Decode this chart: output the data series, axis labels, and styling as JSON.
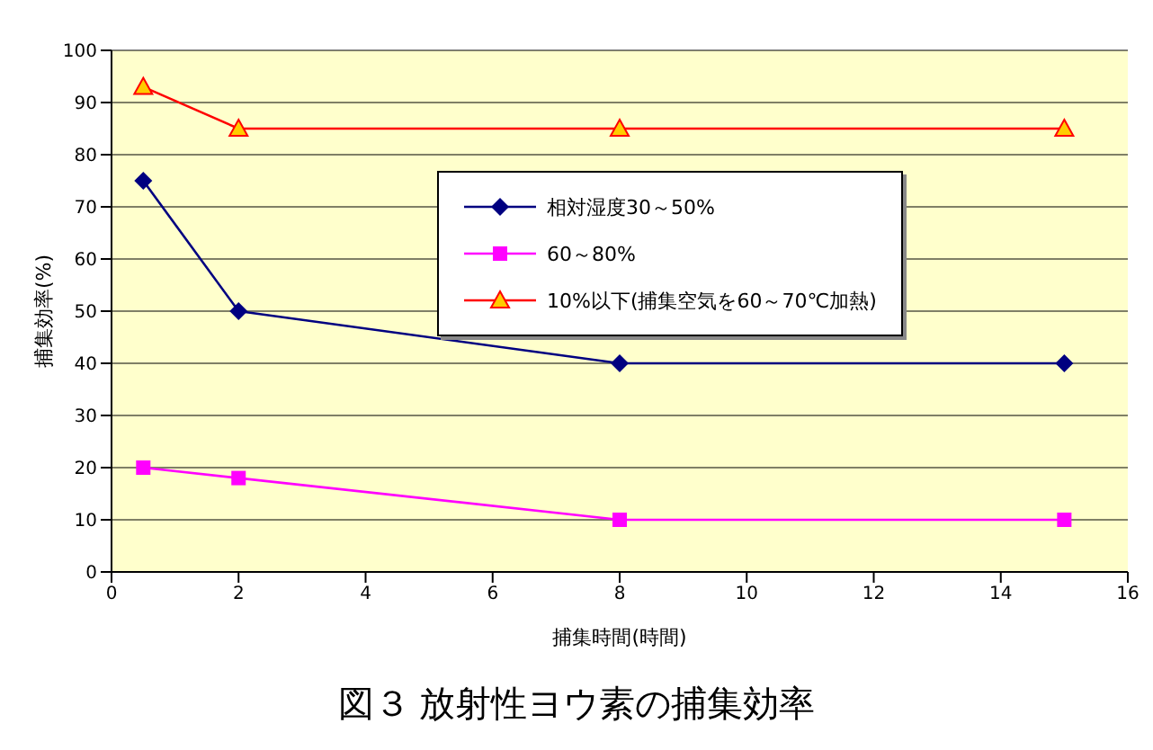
{
  "chart_data": {
    "type": "line",
    "xlabel": "捕集時間(時間)",
    "ylabel": "捕集効率(%)",
    "x": [
      0.5,
      2,
      8,
      15
    ],
    "series": [
      {
        "name": "相対湿度30～50%",
        "color": "#000080",
        "values": [
          75,
          50,
          40,
          40
        ],
        "marker": "diamond"
      },
      {
        "name": "60～80%",
        "color": "#ff00ff",
        "values": [
          20,
          18,
          10,
          10
        ],
        "marker": "square"
      },
      {
        "name": "10%以下(捕集空気を60～70℃加熱)",
        "color": "#ff0000",
        "values": [
          93,
          85,
          85,
          85
        ],
        "marker": "triangle"
      }
    ],
    "xlim": [
      0,
      16
    ],
    "xticks": [
      0,
      2,
      4,
      6,
      8,
      10,
      12,
      14,
      16
    ],
    "ylim": [
      0,
      100
    ],
    "yticks": [
      0,
      10,
      20,
      30,
      40,
      50,
      60,
      70,
      80,
      90,
      100
    ],
    "grid": "y",
    "legend": "right",
    "annotations": [
      "図３ 放射性ヨウ素の捕集効率"
    ]
  }
}
